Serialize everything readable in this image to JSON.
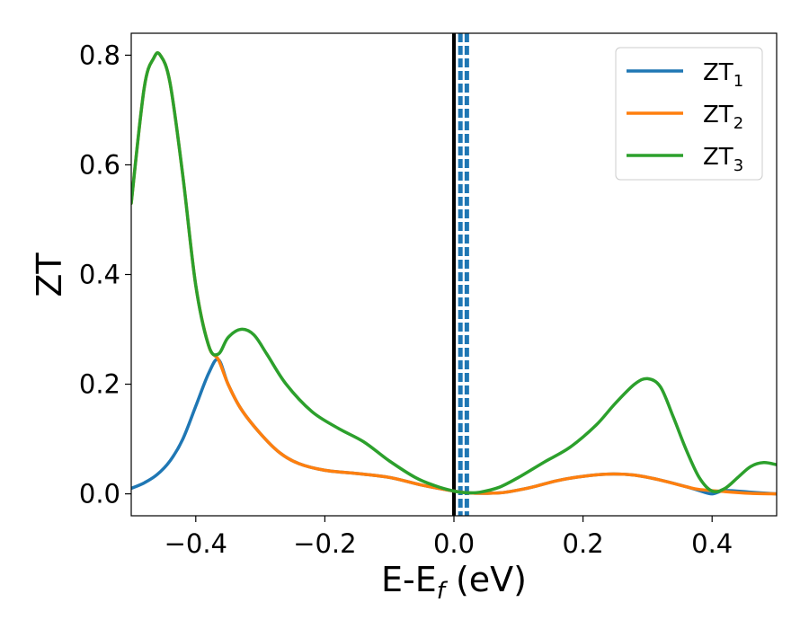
{
  "chart_data": {
    "type": "line",
    "xlabel": "E-E",
    "xlabel_sub": "f",
    "xlabel_unit": " (eV)",
    "ylabel": "ZT",
    "xlim": [
      -0.5,
      0.5
    ],
    "ylim": [
      -0.04,
      0.84
    ],
    "xticks": [
      -0.4,
      -0.2,
      0.0,
      0.2,
      0.4
    ],
    "xtick_labels": [
      "−0.4",
      "−0.2",
      "0.0",
      "0.2",
      "0.4"
    ],
    "yticks": [
      0.0,
      0.2,
      0.4,
      0.6,
      0.8
    ],
    "ytick_labels": [
      "0.0",
      "0.2",
      "0.4",
      "0.6",
      "0.8"
    ],
    "grid": false,
    "legend_position": "top-right",
    "vertical_lines": [
      {
        "x": 0.0,
        "style": "solid",
        "color": "#000000"
      },
      {
        "x": 0.01,
        "style": "dashed",
        "color": "#1f77b4"
      },
      {
        "x": 0.02,
        "style": "dashed",
        "color": "#1f77b4"
      }
    ],
    "series": [
      {
        "name": "ZT",
        "name_sub": "1",
        "color": "#1f77b4",
        "x": [
          -0.5,
          -0.48,
          -0.46,
          -0.44,
          -0.42,
          -0.4,
          -0.38,
          -0.365,
          -0.35,
          -0.33,
          -0.3,
          -0.27,
          -0.24,
          -0.2,
          -0.15,
          -0.1,
          -0.05,
          0.0,
          0.02,
          0.05,
          0.08,
          0.12,
          0.16,
          0.2,
          0.24,
          0.28,
          0.32,
          0.36,
          0.38,
          0.4,
          0.42,
          0.46,
          0.5
        ],
        "y": [
          0.01,
          0.02,
          0.035,
          0.06,
          0.1,
          0.16,
          0.22,
          0.245,
          0.2,
          0.155,
          0.11,
          0.075,
          0.055,
          0.043,
          0.037,
          0.03,
          0.016,
          0.005,
          0.002,
          0.001,
          0.003,
          0.012,
          0.024,
          0.032,
          0.036,
          0.034,
          0.025,
          0.013,
          0.006,
          0.0,
          0.006,
          0.003,
          0.0
        ]
      },
      {
        "name": "ZT",
        "name_sub": "2",
        "color": "#ff7f0e",
        "x": [
          -0.5,
          -0.48,
          -0.465,
          -0.455,
          -0.44,
          -0.42,
          -0.4,
          -0.38,
          -0.365,
          -0.35,
          -0.33,
          -0.3,
          -0.27,
          -0.24,
          -0.2,
          -0.15,
          -0.1,
          -0.05,
          0.0,
          0.02,
          0.05,
          0.08,
          0.12,
          0.16,
          0.2,
          0.24,
          0.28,
          0.32,
          0.36,
          0.38,
          0.42,
          0.46,
          0.5
        ],
        "y": [
          0.53,
          0.74,
          0.795,
          0.8,
          0.75,
          0.58,
          0.38,
          0.27,
          0.245,
          0.2,
          0.155,
          0.11,
          0.075,
          0.055,
          0.043,
          0.037,
          0.03,
          0.016,
          0.005,
          0.002,
          0.001,
          0.003,
          0.012,
          0.024,
          0.032,
          0.036,
          0.034,
          0.025,
          0.013,
          0.008,
          0.004,
          0.001,
          0.0
        ]
      },
      {
        "name": "ZT",
        "name_sub": "3",
        "color": "#2ca02c",
        "x": [
          -0.5,
          -0.48,
          -0.465,
          -0.455,
          -0.44,
          -0.42,
          -0.4,
          -0.38,
          -0.365,
          -0.35,
          -0.33,
          -0.31,
          -0.29,
          -0.26,
          -0.22,
          -0.18,
          -0.14,
          -0.1,
          -0.06,
          -0.03,
          0.0,
          0.02,
          0.04,
          0.07,
          0.1,
          0.14,
          0.18,
          0.22,
          0.25,
          0.28,
          0.3,
          0.32,
          0.34,
          0.36,
          0.38,
          0.4,
          0.42,
          0.44,
          0.46,
          0.48,
          0.5
        ],
        "y": [
          0.53,
          0.74,
          0.795,
          0.8,
          0.75,
          0.58,
          0.38,
          0.27,
          0.255,
          0.285,
          0.3,
          0.29,
          0.255,
          0.2,
          0.15,
          0.12,
          0.095,
          0.06,
          0.03,
          0.015,
          0.005,
          0.002,
          0.003,
          0.012,
          0.03,
          0.058,
          0.085,
          0.125,
          0.165,
          0.2,
          0.21,
          0.195,
          0.14,
          0.08,
          0.03,
          0.005,
          0.01,
          0.03,
          0.05,
          0.057,
          0.053
        ]
      }
    ]
  }
}
